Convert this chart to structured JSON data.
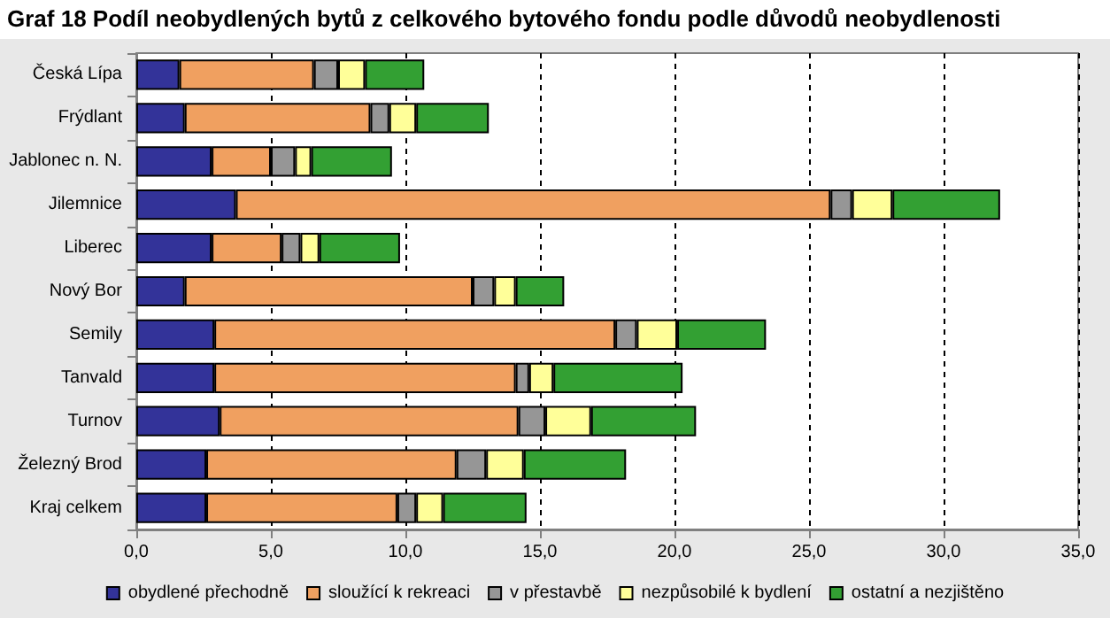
{
  "chart_data": {
    "type": "bar",
    "title": "Graf  18 Podíl neobydlených bytů z celkového bytového fondu podle důvodů neobydlenosti",
    "orientation": "horizontal",
    "stacked": true,
    "categories": [
      "Česká Lípa",
      "Frýdlant",
      "Jablonec n. N.",
      "Jilemnice",
      "Liberec",
      "Nový Bor",
      "Semily",
      "Tanvald",
      "Turnov",
      "Železný Brod",
      "Kraj celkem"
    ],
    "series": [
      {
        "name": "obydlené přechodně",
        "color": "#333399",
        "values": [
          1.6,
          1.8,
          2.8,
          3.7,
          2.8,
          1.8,
          2.9,
          2.9,
          3.1,
          2.6,
          2.6
        ]
      },
      {
        "name": "sloužící k rekreaci",
        "color": "#f0a060",
        "values": [
          5.0,
          6.9,
          2.2,
          22.1,
          2.6,
          10.7,
          14.9,
          11.2,
          11.1,
          9.3,
          7.1
        ]
      },
      {
        "name": "v přestavbě",
        "color": "#969696",
        "values": [
          0.9,
          0.7,
          0.9,
          0.8,
          0.7,
          0.8,
          0.8,
          0.5,
          1.0,
          1.1,
          0.7
        ]
      },
      {
        "name": "nezpůsobilé k bydlení",
        "color": "#ffff99",
        "values": [
          1.0,
          1.0,
          0.6,
          1.5,
          0.7,
          0.8,
          1.5,
          0.9,
          1.7,
          1.4,
          1.0
        ]
      },
      {
        "name": "ostatní a nezjištěno",
        "color": "#33a033",
        "values": [
          2.2,
          2.7,
          3.0,
          4.0,
          3.0,
          1.8,
          3.3,
          4.8,
          3.9,
          3.8,
          3.1
        ]
      }
    ],
    "xlim": [
      0,
      35
    ],
    "xticks": [
      {
        "value": 0,
        "label": "0,0"
      },
      {
        "value": 5,
        "label": "5,0"
      },
      {
        "value": 10,
        "label": "10,0"
      },
      {
        "value": 15,
        "label": "15,0"
      },
      {
        "value": 20,
        "label": "20,0"
      },
      {
        "value": 25,
        "label": "25,0"
      },
      {
        "value": 30,
        "label": "30,0"
      },
      {
        "value": 35,
        "label": "35,0"
      }
    ],
    "grid": "x",
    "legend": "bottom"
  }
}
